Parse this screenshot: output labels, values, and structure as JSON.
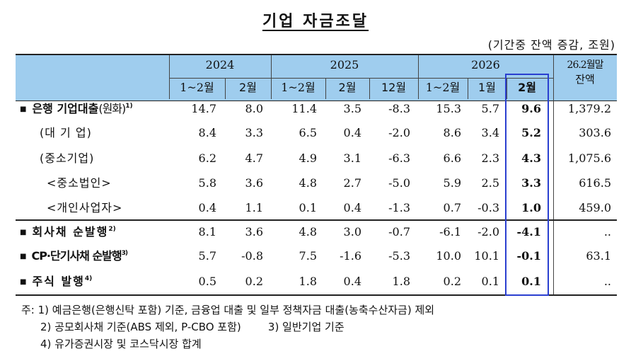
{
  "title": "기업 자금조달",
  "unit": "(기간중 잔액 증감, 조원)",
  "header": {
    "years": [
      "2024",
      "2025",
      "2026"
    ],
    "balance": [
      "26.2월말",
      "잔액"
    ],
    "periods": [
      "1~2월",
      "2월",
      "1~2월",
      "2월",
      "12월",
      "1~2월",
      "1월",
      "2월"
    ]
  },
  "rows": [
    {
      "label": "은행 기업대출",
      "label_suffix": "(원화)",
      "sup": "1)",
      "bullet": "■",
      "values": [
        "14.7",
        "8.0",
        "11.4",
        "3.5",
        "-8.3",
        "15.3",
        "5.7",
        "9.6",
        "1,379.2"
      ]
    },
    {
      "label": "(대 기 업)",
      "values": [
        "8.4",
        "3.3",
        "6.5",
        "0.4",
        "-2.0",
        "8.6",
        "3.4",
        "5.2",
        "303.6"
      ]
    },
    {
      "label": "(중소기업)",
      "values": [
        "6.2",
        "4.7",
        "4.9",
        "3.1",
        "-6.3",
        "6.6",
        "2.3",
        "4.3",
        "1,075.6"
      ]
    },
    {
      "label": "<중소법인>",
      "values": [
        "5.8",
        "3.6",
        "4.8",
        "2.7",
        "-5.0",
        "5.9",
        "2.5",
        "3.3",
        "616.5"
      ]
    },
    {
      "label": "<개인사업자>",
      "values": [
        "0.4",
        "1.1",
        "0.1",
        "0.4",
        "-1.3",
        "0.7",
        "-0.3",
        "1.0",
        "459.0"
      ]
    },
    {
      "label": "회사채 순발행",
      "sup": "2)",
      "bullet": "■",
      "values": [
        "8.1",
        "3.6",
        "4.8",
        "3.0",
        "-0.7",
        "-6.1",
        "-2.0",
        "-4.1",
        ".."
      ]
    },
    {
      "label": "CP·단기사채 순발행",
      "sup": "3)",
      "bullet": "■",
      "values": [
        "5.7",
        "-0.8",
        "7.5",
        "-1.6",
        "-5.3",
        "10.0",
        "10.1",
        "-0.1",
        "63.1"
      ]
    },
    {
      "label": "주식 발행",
      "sup": "4)",
      "bullet": "■",
      "values": [
        "0.5",
        "0.2",
        "1.8",
        "0.4",
        "1.8",
        "0.2",
        "0.1",
        "0.1",
        ".."
      ]
    }
  ],
  "notes": [
    "주: 1) 예금은행(은행신탁 포함) 기준, 금융업 대출 및 일부 정책자금 대출(농축수산자금) 제외",
    "2) 공모회사채 기준(ABS 제외, P-CBO 포함)        3) 일반기업 기준",
    "4) 유가증권시장 및 코스닥시장 합계"
  ],
  "colors": {
    "header_bg": "#9fcdee",
    "highlight_border": "#2a3fd0"
  }
}
